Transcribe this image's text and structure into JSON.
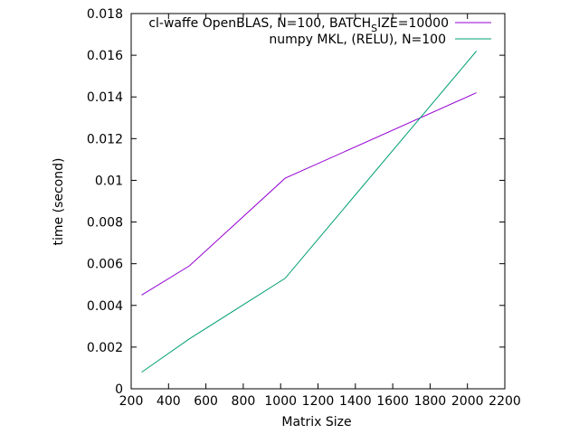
{
  "chart_data": {
    "type": "line",
    "xlabel": "Matrix Size",
    "ylabel": "time (second)",
    "xlim": [
      200,
      2200
    ],
    "ylim": [
      0,
      0.018
    ],
    "xticks": [
      200,
      400,
      600,
      800,
      1000,
      1200,
      1400,
      1600,
      1800,
      2000,
      2200
    ],
    "yticks": [
      0,
      0.002,
      0.004,
      0.006,
      0.008,
      0.01,
      0.012,
      0.014,
      0.016,
      0.018
    ],
    "grid": false,
    "legend_position": "top-right",
    "series": [
      {
        "name": "cl-waffe OpenBLAS, N=100, BATCH_SIZE=10000",
        "legend_main": "cl-waffe OpenBLAS, N=100, BATCH",
        "legend_sub": "S",
        "legend_tail": "IZE=10000",
        "color": "#9400d3",
        "x": [
          256,
          512,
          1024,
          2048
        ],
        "y": [
          0.0045,
          0.0059,
          0.0101,
          0.0142
        ]
      },
      {
        "name": "numpy MKL, (RELU), N=100",
        "color": "#009e73",
        "x": [
          256,
          512,
          1024,
          2048
        ],
        "y": [
          0.0008,
          0.0024,
          0.0053,
          0.0162
        ]
      }
    ]
  }
}
